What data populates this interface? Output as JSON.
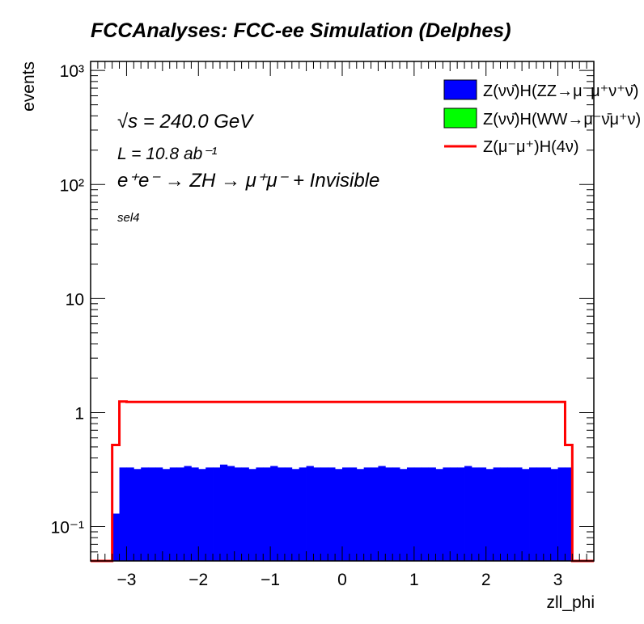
{
  "title": "FCCAnalyses: FCC-ee Simulation (Delphes)",
  "annotations": {
    "energy": "√s = 240.0 GeV",
    "lumi": "L = 10.8 ab⁻¹",
    "process": "e⁺e⁻ → ZH → μ⁺μ⁻ + Invisible",
    "selection": "sel4"
  },
  "chart_data": {
    "type": "histogram",
    "title": "FCCAnalyses: FCC-ee Simulation (Delphes)",
    "xlabel": "zll_phi",
    "ylabel": "events",
    "xlim": [
      -3.5,
      3.5
    ],
    "ylim": [
      0.05,
      1200
    ],
    "yscale": "log",
    "xticks": [
      -3,
      -2,
      -1,
      0,
      1,
      2,
      3
    ],
    "xtick_labels": [
      "−3",
      "−2",
      "−1",
      "0",
      "1",
      "2",
      "3"
    ],
    "yticks": [
      0.1,
      1,
      10,
      100,
      1000
    ],
    "ytick_labels": [
      "10⁻¹",
      "1",
      "10",
      "10²",
      "10³"
    ],
    "legend_position": "top-right",
    "bin_edges_start": -3.2,
    "bin_width": 0.1,
    "series": [
      {
        "name": "Z(νν̄)H(ZZ→μ⁻μ⁺ν⁺ν̄)",
        "style": "filled",
        "color": "#0000ff",
        "values": [
          0.13,
          0.33,
          0.33,
          0.32,
          0.33,
          0.33,
          0.33,
          0.32,
          0.33,
          0.33,
          0.34,
          0.33,
          0.32,
          0.33,
          0.33,
          0.35,
          0.34,
          0.33,
          0.33,
          0.32,
          0.33,
          0.33,
          0.34,
          0.33,
          0.33,
          0.32,
          0.33,
          0.34,
          0.33,
          0.33,
          0.33,
          0.32,
          0.33,
          0.33,
          0.32,
          0.33,
          0.33,
          0.34,
          0.33,
          0.33,
          0.32,
          0.33,
          0.33,
          0.33,
          0.33,
          0.32,
          0.33,
          0.33,
          0.33,
          0.34,
          0.33,
          0.33,
          0.32,
          0.33,
          0.33,
          0.33,
          0.33,
          0.32,
          0.33,
          0.33,
          0.33,
          0.32,
          0.33,
          0.33
        ]
      },
      {
        "name": "Z(νν̄)H(WW→μ⁻ν̄μ⁺ν)",
        "style": "filled",
        "color": "#00ff00",
        "values": []
      },
      {
        "name": "Z(μ⁻μ⁺)H(4ν)",
        "style": "line",
        "color": "#ff0000",
        "values": [
          0.52,
          1.25,
          1.24,
          1.24,
          1.24,
          1.24,
          1.24,
          1.24,
          1.24,
          1.24,
          1.24,
          1.24,
          1.24,
          1.24,
          1.24,
          1.24,
          1.24,
          1.24,
          1.24,
          1.24,
          1.24,
          1.24,
          1.24,
          1.24,
          1.24,
          1.24,
          1.24,
          1.24,
          1.24,
          1.24,
          1.24,
          1.24,
          1.24,
          1.24,
          1.24,
          1.24,
          1.24,
          1.24,
          1.24,
          1.24,
          1.24,
          1.24,
          1.24,
          1.24,
          1.24,
          1.24,
          1.24,
          1.24,
          1.24,
          1.24,
          1.24,
          1.24,
          1.24,
          1.24,
          1.24,
          1.24,
          1.24,
          1.24,
          1.24,
          1.24,
          1.24,
          1.24,
          1.24,
          0.52
        ]
      }
    ]
  }
}
